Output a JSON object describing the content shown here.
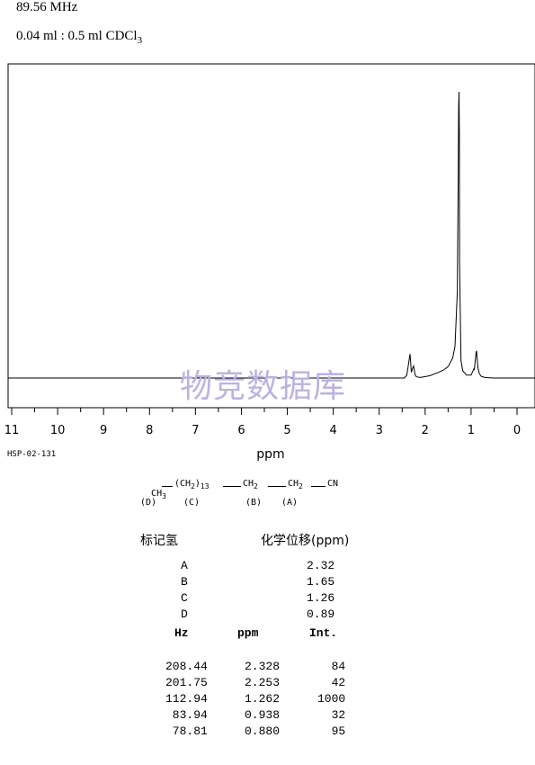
{
  "header": {
    "frequency": "89.56 MHz",
    "solvent_prefix": "0.04 ml : 0.5 ml CDCl",
    "solvent_sub": "3"
  },
  "watermark": "物竞数据库",
  "sample_code": "HSP-02-131",
  "structure": {
    "line1": [
      "CH",
      "3",
      "(CH",
      "2",
      ")",
      "13",
      "CH",
      "2",
      "CH",
      "2",
      "CN"
    ],
    "labels": [
      "(D)",
      "(C)",
      "(B)",
      "(A)"
    ]
  },
  "assignment": {
    "col1_header": "标记氢",
    "col2_header": "化学位移(ppm)",
    "rows": [
      {
        "label": "A",
        "shift": "2.32"
      },
      {
        "label": "B",
        "shift": "1.65"
      },
      {
        "label": "C",
        "shift": "1.26"
      },
      {
        "label": "D",
        "shift": "0.89"
      }
    ]
  },
  "peak_table": {
    "headers": [
      "Hz",
      "ppm",
      "Int."
    ],
    "rows": [
      {
        "hz": "208.44",
        "ppm": "2.328",
        "int": "84"
      },
      {
        "hz": "201.75",
        "ppm": "2.253",
        "int": "42"
      },
      {
        "hz": "112.94",
        "ppm": "1.262",
        "int": "1000"
      },
      {
        "hz": "83.94",
        "ppm": "0.938",
        "int": "32"
      },
      {
        "hz": "78.81",
        "ppm": "0.880",
        "int": "95"
      }
    ]
  },
  "chart_data": {
    "type": "line",
    "xlabel": "ppm",
    "xlim": [
      11,
      0
    ],
    "ylim": [
      0,
      1000
    ],
    "x_ticks": [
      "11",
      "10",
      "9",
      "8",
      "7",
      "6",
      "5",
      "4",
      "3",
      "2",
      "1",
      "0"
    ],
    "series": [
      {
        "x": [
          11.0,
          2.45,
          2.4,
          2.36,
          2.33,
          2.3,
          2.27,
          2.25,
          2.22,
          2.19,
          2.1,
          1.9,
          1.7,
          1.6,
          1.5,
          1.4,
          1.35,
          1.3,
          1.28,
          1.27,
          1.262,
          1.255,
          1.25,
          1.22,
          1.18,
          1.1,
          1.0,
          0.96,
          0.94,
          0.93,
          0.91,
          0.89,
          0.88,
          0.87,
          0.85,
          0.82,
          0.78,
          0.7,
          0.6,
          0.5,
          0.0
        ],
        "y": [
          0,
          0,
          10,
          50,
          84,
          20,
          35,
          42,
          12,
          4,
          2,
          8,
          20,
          28,
          40,
          70,
          110,
          300,
          700,
          950,
          1000,
          850,
          400,
          60,
          25,
          10,
          10,
          25,
          32,
          28,
          60,
          90,
          95,
          70,
          35,
          15,
          6,
          2,
          1,
          0,
          0
        ]
      }
    ]
  }
}
